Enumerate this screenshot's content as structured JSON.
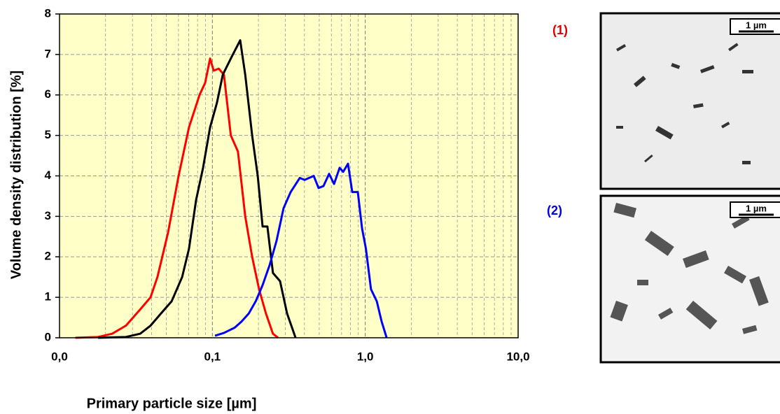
{
  "chart_data": {
    "type": "line",
    "xlabel": "Primary particle size  [µm]",
    "ylabel": "Volume density  distribution [%]",
    "xscale": "log",
    "xlim": [
      0.01,
      10
    ],
    "xticks": [
      {
        "value": 0.01,
        "label": "0,0"
      },
      {
        "value": 0.1,
        "label": "0,1"
      },
      {
        "value": 1,
        "label": "1,0"
      },
      {
        "value": 10,
        "label": "10,0"
      }
    ],
    "ylim": [
      0,
      8
    ],
    "yticks": [
      0,
      1,
      2,
      3,
      4,
      5,
      6,
      7,
      8
    ],
    "grid": true,
    "annotations": [
      "(1)",
      "(2)"
    ],
    "scale_bars": [
      "1 µm",
      "1 µm"
    ],
    "series": [
      {
        "color": "#ff0000",
        "x": [
          0.0127,
          0.0179,
          0.0221,
          0.0272,
          0.0337,
          0.0394,
          0.0437,
          0.0513,
          0.0601,
          0.0703,
          0.0824,
          0.0897,
          0.0966,
          0.102,
          0.11,
          0.119,
          0.132,
          0.147,
          0.164,
          0.182,
          0.202,
          0.224,
          0.249,
          0.269
        ],
        "values": [
          0,
          0.02,
          0.1,
          0.3,
          0.7,
          1.0,
          1.5,
          2.6,
          4.0,
          5.2,
          6.0,
          6.3,
          6.9,
          6.6,
          6.65,
          6.5,
          5.0,
          4.6,
          3.0,
          2.0,
          1.2,
          0.6,
          0.1,
          0
        ]
      },
      {
        "color": "#000000",
        "x": [
          0.0179,
          0.0272,
          0.0337,
          0.0394,
          0.0461,
          0.0541,
          0.0634,
          0.0703,
          0.0782,
          0.0869,
          0.0966,
          0.107,
          0.117,
          0.132,
          0.152,
          0.164,
          0.182,
          0.198,
          0.213,
          0.229,
          0.249,
          0.277,
          0.308,
          0.35
        ],
        "values": [
          0,
          0.02,
          0.1,
          0.3,
          0.6,
          0.9,
          1.5,
          2.2,
          3.4,
          4.2,
          5.2,
          5.8,
          6.5,
          6.9,
          7.35,
          6.5,
          5.0,
          4.0,
          2.75,
          2.75,
          1.6,
          1.4,
          0.6,
          0
        ]
      },
      {
        "color": "#0000ff",
        "x": [
          0.104,
          0.119,
          0.14,
          0.155,
          0.173,
          0.192,
          0.213,
          0.237,
          0.263,
          0.292,
          0.325,
          0.373,
          0.401,
          0.46,
          0.495,
          0.533,
          0.58,
          0.625,
          0.68,
          0.717,
          0.771,
          0.822,
          0.894,
          0.953,
          1.01,
          1.09,
          1.19,
          1.28,
          1.38
        ],
        "values": [
          0.05,
          0.12,
          0.25,
          0.4,
          0.6,
          0.9,
          1.3,
          1.8,
          2.4,
          3.2,
          3.6,
          3.95,
          3.9,
          4.0,
          3.7,
          3.75,
          4.05,
          3.8,
          4.2,
          4.1,
          4.3,
          3.6,
          3.6,
          2.7,
          2.2,
          1.2,
          0.9,
          0.4,
          0
        ]
      }
    ]
  }
}
